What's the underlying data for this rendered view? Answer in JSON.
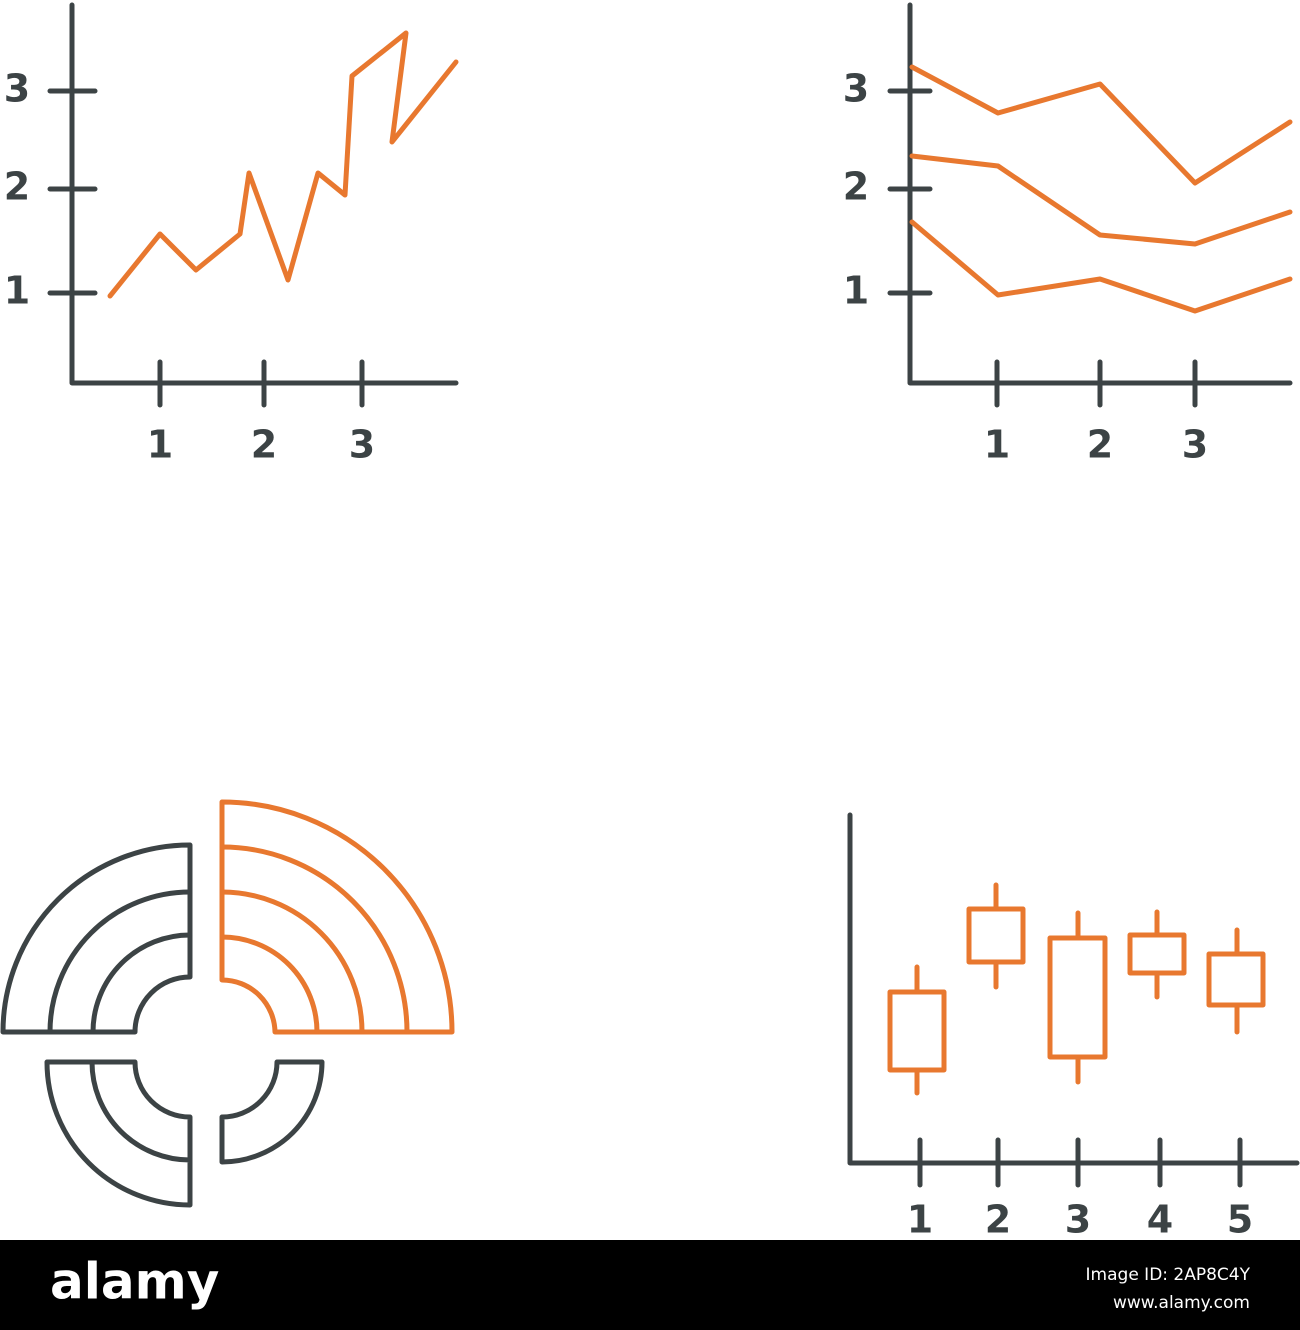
{
  "icons": [
    {
      "x_labels": [
        1,
        2,
        3
      ],
      "y_labels": [
        1,
        2,
        3
      ]
    },
    {
      "x_labels": [
        1,
        2,
        3
      ],
      "y_labels": [
        1,
        2,
        3
      ]
    },
    {},
    {
      "x_labels": [
        1,
        2,
        3,
        4,
        5
      ]
    }
  ],
  "footer": {
    "brand": "alamy",
    "image_id": "Image ID: 2AP8C4Y",
    "url": "www.alamy.com"
  }
}
